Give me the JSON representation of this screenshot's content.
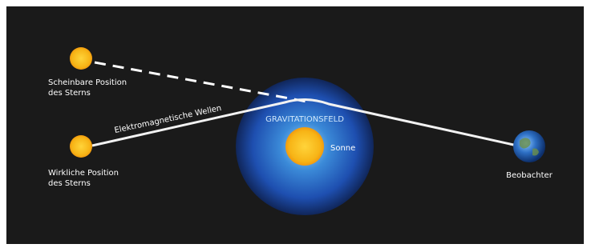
{
  "apparent_star": {
    "label": [
      "Scheinbare Position",
      "des Sterns"
    ]
  },
  "real_star": {
    "label": [
      "Wirkliche Position",
      "des Sterns"
    ]
  },
  "light_path": {
    "label": "Elektromagnetische Wellen"
  },
  "gravity_field": {
    "label": "GRAVITATIONSFELD"
  },
  "sun": {
    "label": "Sonne"
  },
  "observer": {
    "label": "Beobachter"
  }
}
